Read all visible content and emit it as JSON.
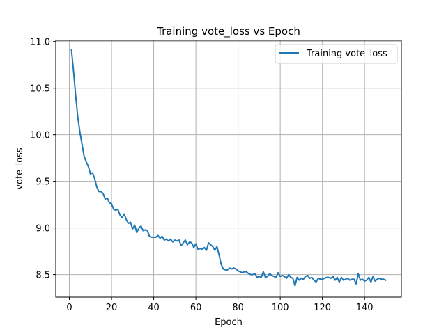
{
  "chart_data": {
    "type": "line",
    "title": "Training vote_loss vs Epoch",
    "xlabel": "Epoch",
    "ylabel": "vote_loss",
    "xlim": [
      -6.45,
      157.45
    ],
    "ylim": [
      8.258,
      11.013
    ],
    "xticks": [
      0,
      20,
      40,
      60,
      80,
      100,
      120,
      140
    ],
    "yticks": [
      8.5,
      9.0,
      9.5,
      10.0,
      10.5,
      11.0
    ],
    "xtick_labels": [
      "0",
      "20",
      "40",
      "60",
      "80",
      "100",
      "120",
      "140"
    ],
    "ytick_labels": [
      "8.5",
      "9.0",
      "9.5",
      "10.0",
      "10.5",
      "11.0"
    ],
    "grid": true,
    "legend_position": "upper right",
    "series": [
      {
        "name": "Training vote_loss",
        "color": "#1f77b4",
        "x": [
          1,
          2,
          3,
          4,
          5,
          6,
          7,
          8,
          9,
          10,
          11,
          12,
          13,
          14,
          15,
          16,
          17,
          18,
          19,
          20,
          21,
          22,
          23,
          24,
          25,
          26,
          27,
          28,
          29,
          30,
          31,
          32,
          33,
          34,
          35,
          36,
          37,
          38,
          39,
          40,
          41,
          42,
          43,
          44,
          45,
          46,
          47,
          48,
          49,
          50,
          51,
          52,
          53,
          54,
          55,
          56,
          57,
          58,
          59,
          60,
          61,
          62,
          63,
          64,
          65,
          66,
          67,
          68,
          69,
          70,
          71,
          72,
          73,
          74,
          75,
          76,
          77,
          78,
          79,
          80,
          81,
          82,
          83,
          84,
          85,
          86,
          87,
          88,
          89,
          90,
          91,
          92,
          93,
          94,
          95,
          96,
          97,
          98,
          99,
          100,
          101,
          102,
          103,
          104,
          105,
          106,
          107,
          108,
          109,
          110,
          111,
          112,
          113,
          114,
          115,
          116,
          117,
          118,
          119,
          120,
          121,
          122,
          123,
          124,
          125,
          126,
          127,
          128,
          129,
          130,
          131,
          132,
          133,
          134,
          135,
          136,
          137,
          138,
          139,
          140,
          141,
          142,
          143,
          144,
          145,
          146,
          147,
          148,
          149,
          150
        ],
        "y": [
          10.91,
          10.68,
          10.42,
          10.19,
          10.03,
          9.9,
          9.77,
          9.71,
          9.66,
          9.58,
          9.59,
          9.53,
          9.44,
          9.39,
          9.39,
          9.37,
          9.31,
          9.32,
          9.27,
          9.26,
          9.2,
          9.19,
          9.2,
          9.14,
          9.11,
          9.15,
          9.09,
          9.05,
          9.06,
          8.99,
          9.03,
          8.95,
          9.0,
          9.02,
          8.97,
          8.98,
          8.97,
          8.91,
          8.9,
          8.9,
          8.9,
          8.92,
          8.89,
          8.91,
          8.87,
          8.88,
          8.86,
          8.88,
          8.85,
          8.87,
          8.86,
          8.87,
          8.81,
          8.84,
          8.87,
          8.82,
          8.85,
          8.84,
          8.79,
          8.83,
          8.77,
          8.78,
          8.77,
          8.79,
          8.76,
          8.84,
          8.82,
          8.8,
          8.76,
          8.8,
          8.71,
          8.61,
          8.56,
          8.55,
          8.55,
          8.57,
          8.56,
          8.57,
          8.56,
          8.54,
          8.53,
          8.52,
          8.53,
          8.53,
          8.51,
          8.5,
          8.5,
          8.51,
          8.47,
          8.48,
          8.47,
          8.53,
          8.47,
          8.48,
          8.51,
          8.49,
          8.48,
          8.47,
          8.52,
          8.48,
          8.49,
          8.48,
          8.46,
          8.5,
          8.47,
          8.46,
          8.38,
          8.47,
          8.44,
          8.46,
          8.45,
          8.48,
          8.49,
          8.46,
          8.47,
          8.44,
          8.42,
          8.46,
          8.45,
          8.45,
          8.46,
          8.47,
          8.47,
          8.46,
          8.48,
          8.44,
          8.47,
          8.42,
          8.47,
          8.44,
          8.45,
          8.46,
          8.44,
          8.45,
          8.45,
          8.4,
          8.51,
          8.44,
          8.45,
          8.43,
          8.44,
          8.47,
          8.42,
          8.48,
          8.43,
          8.45,
          8.46,
          8.45,
          8.45,
          8.44
        ]
      }
    ]
  }
}
